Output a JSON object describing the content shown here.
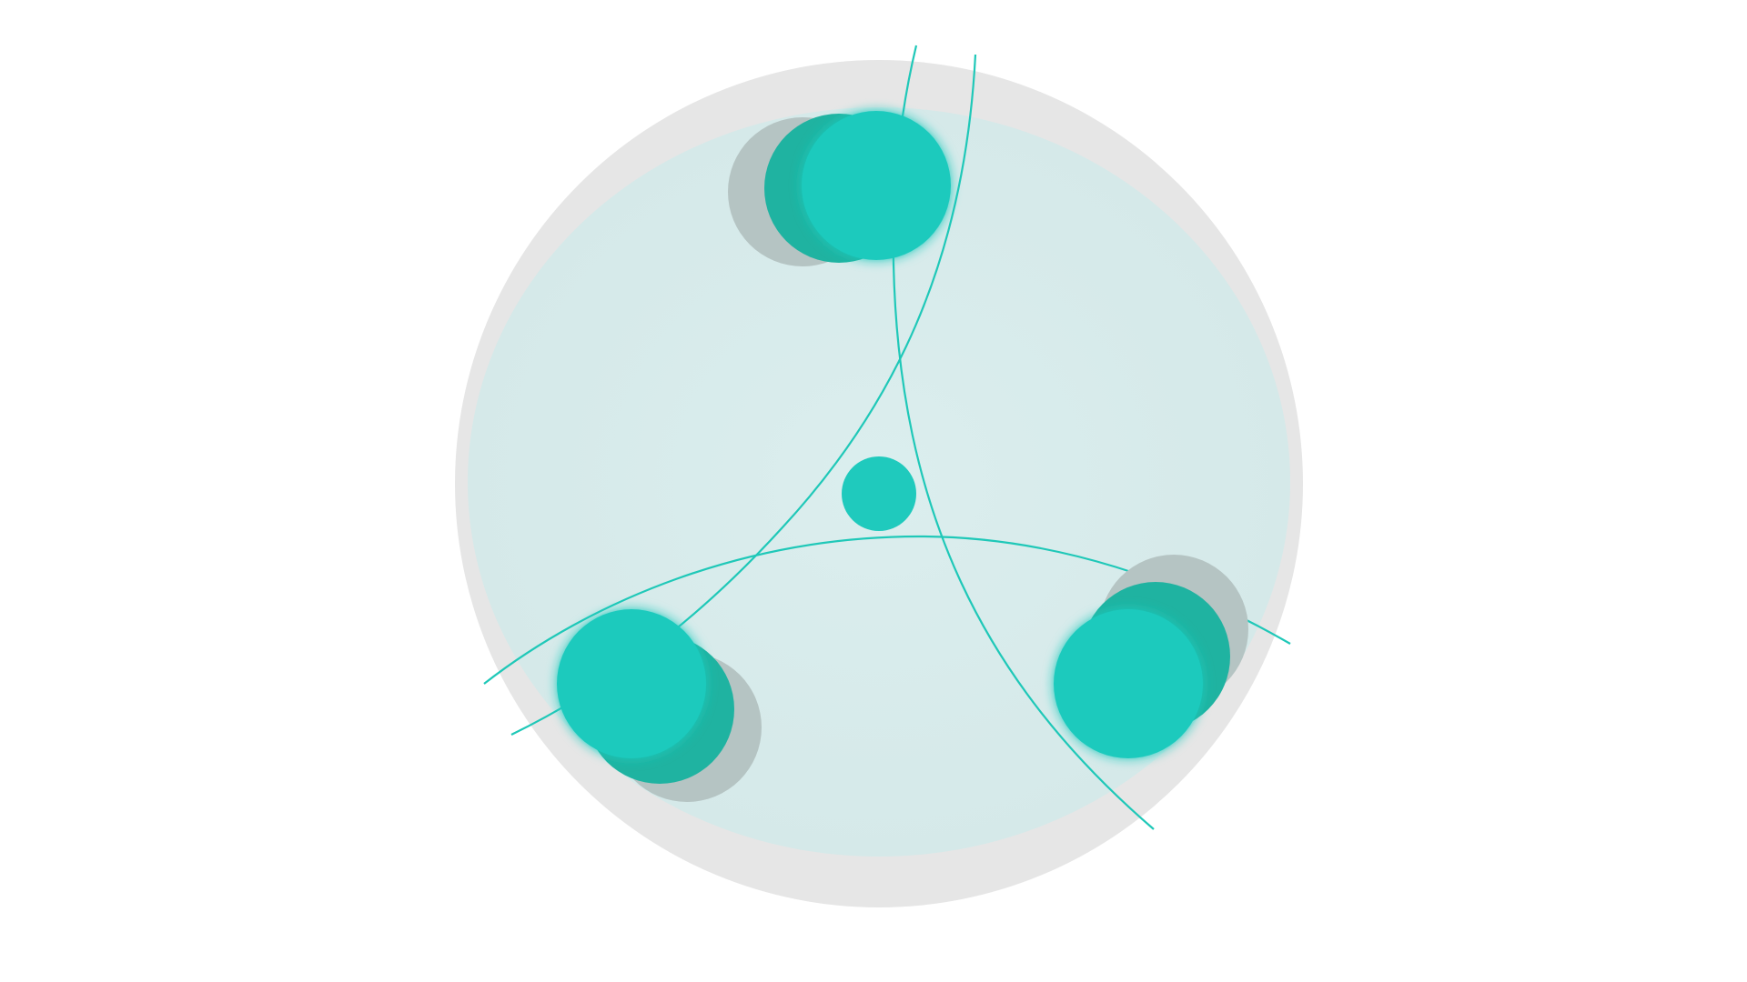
{
  "scene": {
    "background_color": "#ffffff",
    "colors": {
      "disk_outer": "#e6e6e6",
      "disk_inner": "#d6eaea",
      "body_primary": "#1fcabd",
      "body_trail_dark": "#1fb3a1",
      "body_trail_shadow": "#b5c4c3",
      "orbit_line": "#1fc8b8",
      "glow": "#bff7f5"
    },
    "center_body": {
      "name": "central-body"
    },
    "orbiting_bodies": [
      {
        "name": "top-body",
        "trail_count": 3
      },
      {
        "name": "bottom-left-body",
        "trail_count": 3
      },
      {
        "name": "bottom-right-body",
        "trail_count": 3
      }
    ],
    "orbit_paths": [
      {
        "name": "orbit-arc-right"
      },
      {
        "name": "orbit-arc-left"
      },
      {
        "name": "orbit-arc-bottom"
      }
    ]
  }
}
